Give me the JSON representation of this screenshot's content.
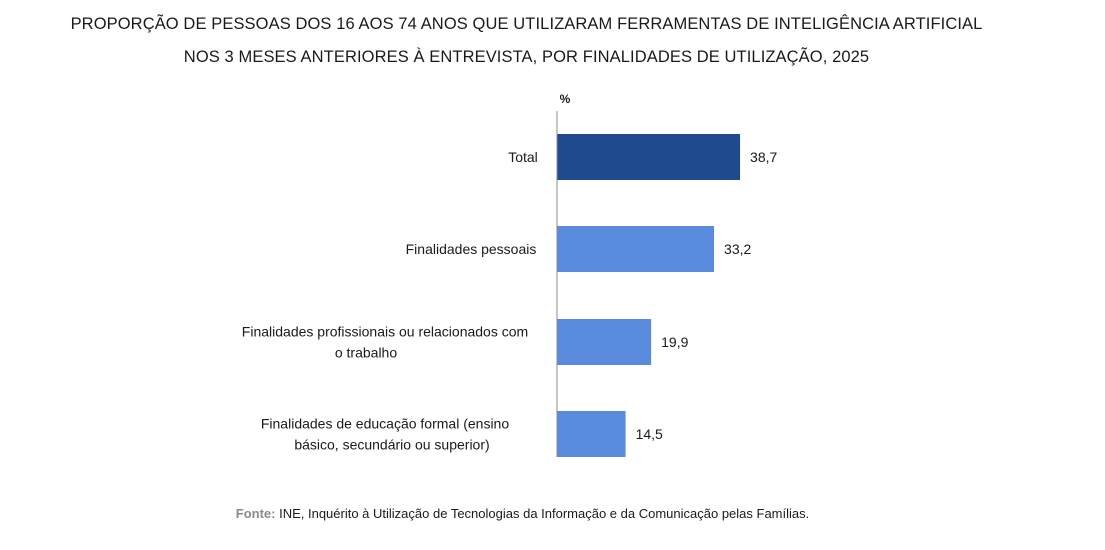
{
  "chart_data": {
    "type": "bar",
    "orientation": "horizontal",
    "title_lines": [
      "PROPORÇÃO DE PESSOAS DOS 16 AOS 74 ANOS QUE UTILIZARAM FERRAMENTAS DE INTELIGÊNCIA ARTIFICIAL",
      "NOS 3 MESES ANTERIORES À ENTREVISTA, POR FINALIDADES DE UTILIZAÇÃO, 2025"
    ],
    "unit_label": "%",
    "categories": [
      [
        "Total"
      ],
      [
        "Finalidades pessoais"
      ],
      [
        "Finalidades profissionais ou relacionados com",
        "o trabalho"
      ],
      [
        "Finalidades de educação formal (ensino",
        "básico, secundário ou superior)"
      ]
    ],
    "values": [
      38.7,
      33.2,
      19.9,
      14.5
    ],
    "value_labels": [
      "38,7",
      "33,2",
      "19,9",
      "14,5"
    ],
    "colors": [
      "#1f4b8e",
      "#5b8bdc",
      "#5b8bdc",
      "#5b8bdc"
    ],
    "xlim": [
      0,
      100
    ],
    "grid": false,
    "legend": "none"
  },
  "source": {
    "label": "Fonte:",
    "text": " INE, Inquérito à Utilização de Tecnologias da Informação e da Comunicação pelas Famílias."
  }
}
